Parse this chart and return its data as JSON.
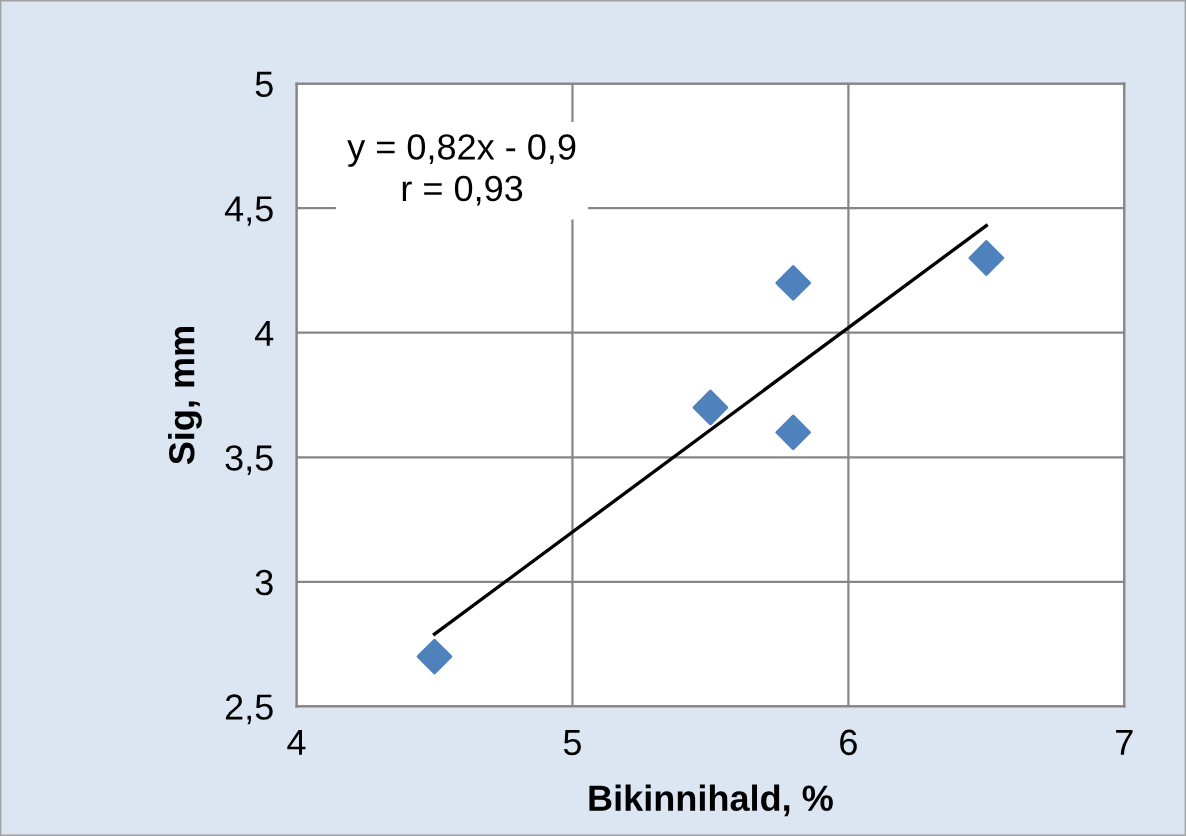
{
  "chart_data": {
    "type": "scatter",
    "xlabel": "Bikinnihald, %",
    "ylabel": "Sig, mm",
    "annotations": [
      "y = 0,82x - 0,9\nr = 0,93"
    ],
    "series": [
      {
        "color": "#4f81bd",
        "marker": "diamond",
        "x": [
          4.5,
          5.5,
          5.8,
          5.8,
          6.5
        ],
        "values": [
          2.7,
          3.7,
          4.2,
          3.6,
          4.3
        ]
      },
      {
        "type": "line",
        "color": "#000000",
        "marker": "none",
        "line_style": "solid",
        "x": [
          4.5,
          6.5
        ],
        "values": [
          2.79,
          4.43
        ]
      }
    ],
    "xlim": [
      4,
      7
    ],
    "xticks": [
      4,
      5,
      6,
      7
    ],
    "ylim": [
      2.5,
      5
    ],
    "yticks": [
      {
        "value": 2.5,
        "label": "2,5"
      },
      3,
      {
        "value": 3.5,
        "label": "3,5"
      },
      4,
      {
        "value": 4.5,
        "label": "4,5"
      },
      5
    ],
    "grid": true,
    "legend": false
  }
}
